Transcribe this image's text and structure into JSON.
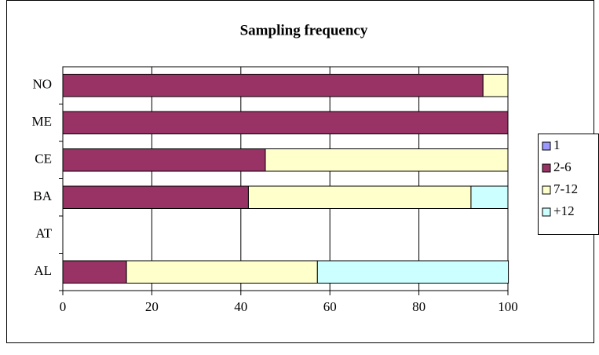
{
  "chart_data": {
    "type": "stacked-bar-horizontal",
    "title": "Sampling frequency",
    "categories": [
      "AL",
      "AT",
      "BA",
      "CE",
      "ME",
      "NO"
    ],
    "series": [
      {
        "name": "1",
        "color": "#9999ff",
        "values": [
          0,
          0,
          0,
          0,
          0,
          0
        ]
      },
      {
        "name": "2-6",
        "color": "#993366",
        "values": [
          14.3,
          0,
          41.7,
          45.5,
          100,
          94.4
        ]
      },
      {
        "name": "7-12",
        "color": "#ffffcc",
        "values": [
          42.9,
          0,
          50,
          54.5,
          0,
          5.6
        ]
      },
      {
        "name": "+12",
        "color": "#ccffff",
        "values": [
          42.9,
          0,
          8.3,
          0,
          0,
          0
        ]
      }
    ],
    "xlim": [
      0,
      100
    ],
    "xticks": [
      0,
      20,
      40,
      60,
      80,
      100
    ],
    "grid": true,
    "legend": "right"
  }
}
